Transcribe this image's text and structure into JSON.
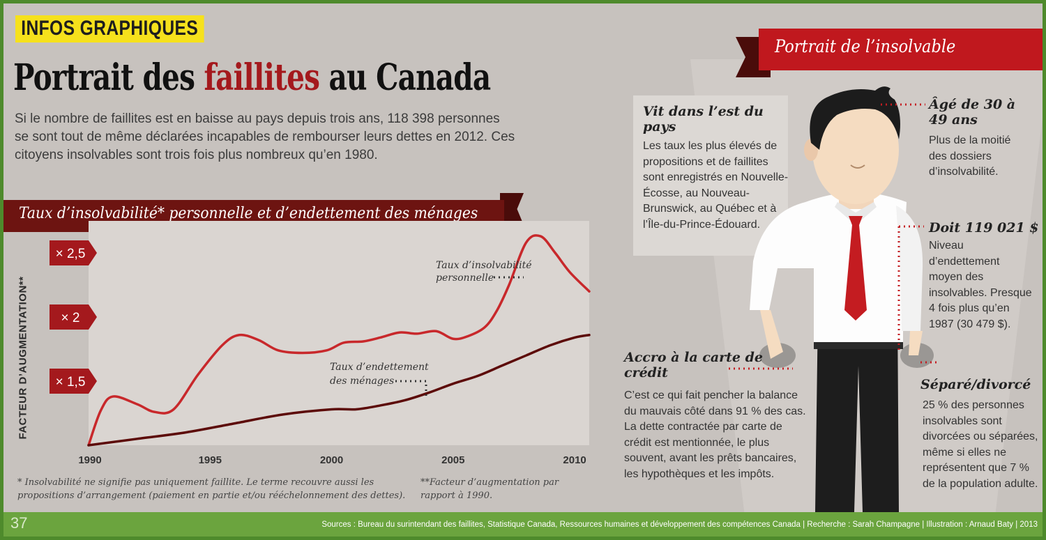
{
  "header": {
    "tag": "INFOS GRAPHIQUES",
    "title_part1": "Portrait des ",
    "title_highlight": "faillites",
    "title_part2": " au Canada",
    "intro": "Si le nombre de faillites est en baisse au pays depuis trois ans, 118 398 personnes se sont tout de même déclarées incapables de rembourser leurs dettes en 2012. Ces citoyens insolvables sont trois fois plus nombreux qu’en 1980."
  },
  "chart_section": {
    "ribbon_title": "Taux d’insolvabilité* personnelle et d’endettement des ménages",
    "footnote1": "* Insolvabilité ne signifie pas uniquement faillite. Le terme recouvre aussi les propositions d’arrangement (paiement en partie et/ou rééchelonnement des dettes).",
    "footnote2": "**Facteur d’augmentation par rapport à 1990."
  },
  "chart_data": {
    "type": "line",
    "title": "Taux d’insolvabilité* personnelle et d’endettement des ménages",
    "xlabel": "",
    "ylabel": "FACTEUR D’AUGMENTATION**",
    "xlim": [
      1990,
      2010.6
    ],
    "ylim": [
      1.0,
      2.75
    ],
    "x_ticks": [
      1990,
      1995,
      2000,
      2005,
      2010
    ],
    "y_ticks": [
      {
        "value": 1.5,
        "label": "× 1,5"
      },
      {
        "value": 2.0,
        "label": "× 2"
      },
      {
        "value": 2.5,
        "label": "× 2,5"
      }
    ],
    "grid": false,
    "series": [
      {
        "name": "Taux d’insolvabilité personnelle",
        "color": "#c8282b",
        "x": [
          1990,
          1990.5,
          1991,
          1992,
          1992.7,
          1993.5,
          1994.5,
          1995.5,
          1996.2,
          1997,
          1997.8,
          1998.8,
          1999.8,
          2000.5,
          2001.3,
          2002,
          2002.8,
          2003.5,
          2004.3,
          2005,
          2005.6,
          2006.3,
          2006.8,
          2007.3,
          2008,
          2008.6,
          2009.2,
          2009.8,
          2010.6
        ],
        "y": [
          1.0,
          1.27,
          1.38,
          1.32,
          1.26,
          1.28,
          1.55,
          1.78,
          1.86,
          1.82,
          1.74,
          1.72,
          1.74,
          1.8,
          1.81,
          1.84,
          1.88,
          1.87,
          1.89,
          1.83,
          1.85,
          1.92,
          2.05,
          2.25,
          2.58,
          2.63,
          2.5,
          2.35,
          2.2
        ]
      },
      {
        "name": "Taux d’endettement des ménages",
        "color": "#5c0a08",
        "x": [
          1990,
          1992,
          1994,
          1996,
          1998,
          2000,
          2001,
          2002,
          2003,
          2004,
          2005,
          2006,
          2007,
          2008,
          2009,
          2010,
          2010.6
        ],
        "y": [
          1.0,
          1.05,
          1.1,
          1.17,
          1.24,
          1.28,
          1.28,
          1.31,
          1.35,
          1.41,
          1.48,
          1.54,
          1.62,
          1.7,
          1.78,
          1.84,
          1.86
        ]
      }
    ],
    "annotations": [
      {
        "text": "Taux d’insolvabilité personnelle",
        "series": 0
      },
      {
        "text": "Taux d’endettement des ménages",
        "series": 1
      }
    ]
  },
  "portrait": {
    "ribbon_title": "Portrait de l’insolvable",
    "est": {
      "title": "Vit dans l’est du pays",
      "text": "Les taux les plus élevés de propositions et de faillites sont enregistrés en Nouvelle-Écosse, au Nouveau-Brunswick, au Québec et à l’Île-du-Prince-Édouard."
    },
    "age": {
      "title": "Âgé de 30 à 49 ans",
      "text": "Plus de la moitié des dossiers d’insolvabilité."
    },
    "debt": {
      "title": "Doit 119 021 $",
      "text": "Niveau d’endettement moyen des insolvables. Presque 4 fois plus qu’en 1987 (30 479 $)."
    },
    "credit": {
      "title": "Accro à la carte de crédit",
      "text": "C’est ce qui fait pencher la balance du mauvais côté dans 91 % des cas. La dette contractée par carte de crédit est mentionnée, le plus souvent, avant les prêts bancaires, les hypothèques et les impôts."
    },
    "separated": {
      "title": "Séparé/divorcé",
      "text": "25 % des personnes insolvables sont divorcées ou séparées, même si elles ne représentent que 7 % de la population adulte."
    }
  },
  "footer": {
    "page_number": "37",
    "sources": "Sources : Bureau du surintendant des faillites, Statistique Canada, Ressources humaines et développement des compétences Canada | Recherche : Sarah Champagne | Illustration : Arnaud Baty | 2013"
  },
  "colors": {
    "accent_red": "#a4191d",
    "ribbon_red": "#c0181e",
    "ribbon_dark": "#6d1411",
    "footer_green": "#6ba43e",
    "tag_yellow": "#f6e11c"
  }
}
